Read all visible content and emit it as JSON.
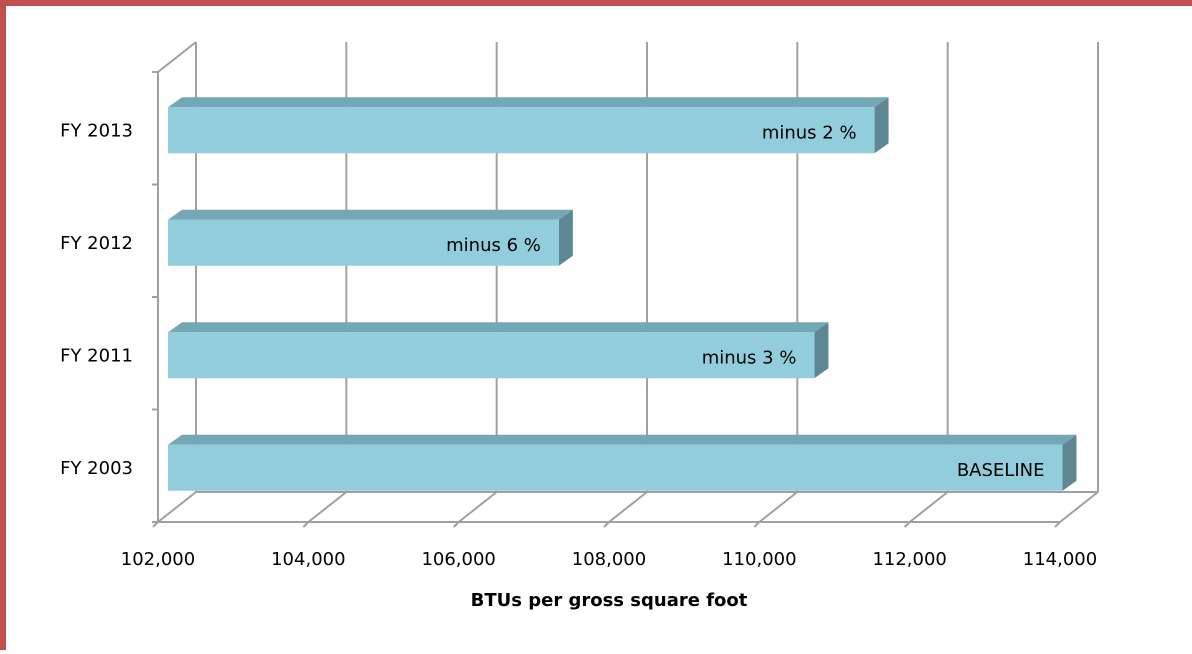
{
  "chart_data": {
    "type": "bar3d_horizontal",
    "categories": [
      "FY 2003",
      "FY 2011",
      "FY 2012",
      "FY 2013"
    ],
    "values": [
      113900,
      110600,
      107200,
      111400
    ],
    "annotations": [
      "BASELINE",
      "minus 3 %",
      "minus 6 %",
      "minus 2 %"
    ],
    "color": "#92cddc",
    "xlabel": "BTUs per gross square foot",
    "xlim": [
      102000,
      114000
    ],
    "xticks": [
      {
        "value": 102000,
        "label": "102,000"
      },
      {
        "value": 104000,
        "label": "104,000"
      },
      {
        "value": 106000,
        "label": "106,000"
      },
      {
        "value": 108000,
        "label": "108,000"
      },
      {
        "value": 110000,
        "label": "110,000"
      },
      {
        "value": 112000,
        "label": "112,000"
      },
      {
        "value": 114000,
        "label": "114,000"
      }
    ],
    "grid": true
  }
}
